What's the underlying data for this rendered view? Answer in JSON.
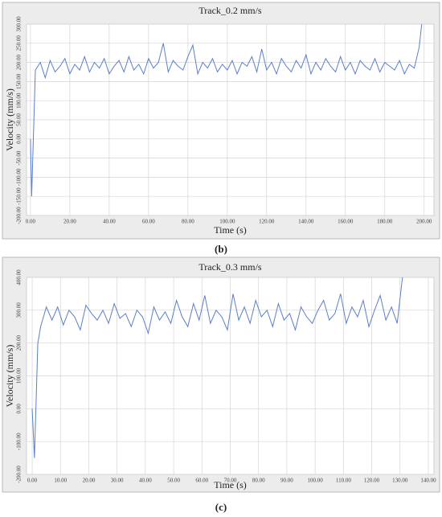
{
  "chart_data": [
    {
      "type": "line",
      "title": "Track_0.2 mm/s",
      "xlabel": "Time (s)",
      "ylabel": "Velocity (mm/s)",
      "caption": "(b)",
      "color": "#5b7fc7",
      "grid": true,
      "x": [
        0,
        0.6,
        2.5,
        5,
        7.5,
        10,
        12.5,
        15,
        17.5,
        20,
        22.5,
        25,
        27.5,
        30,
        32.5,
        35,
        37.5,
        40,
        42.5,
        45,
        47.5,
        50,
        52.5,
        55,
        57.5,
        60,
        62.5,
        65,
        67.5,
        70,
        72.5,
        75,
        77.5,
        80,
        82.5,
        85,
        87.5,
        90,
        92.5,
        95,
        97.5,
        100,
        102.5,
        105,
        107.5,
        110,
        112.5,
        115,
        117.5,
        120,
        122.5,
        125,
        127.5,
        130,
        132.5,
        135,
        137.5,
        140,
        142.5,
        145,
        147.5,
        150,
        152.5,
        155,
        157.5,
        160,
        162.5,
        165,
        167.5,
        170,
        172.5,
        175,
        177.5,
        180,
        182.5,
        185,
        187.5,
        190,
        192.5,
        195,
        197.5,
        199
      ],
      "values": [
        0,
        -150,
        180,
        200,
        160,
        205,
        175,
        190,
        210,
        170,
        195,
        180,
        215,
        175,
        200,
        185,
        210,
        170,
        190,
        205,
        175,
        215,
        180,
        195,
        170,
        210,
        185,
        200,
        250,
        175,
        205,
        190,
        180,
        215,
        245,
        170,
        200,
        185,
        210,
        175,
        195,
        180,
        205,
        170,
        200,
        190,
        215,
        175,
        235,
        180,
        200,
        170,
        210,
        190,
        175,
        205,
        185,
        220,
        170,
        200,
        180,
        210,
        190,
        175,
        215,
        180,
        200,
        170,
        205,
        190,
        180,
        210,
        175,
        200,
        190,
        180,
        205,
        170,
        195,
        185,
        240,
        310
      ],
      "xlim": [
        -2,
        205
      ],
      "ylim": [
        -200,
        300
      ],
      "xticks": [
        {
          "value": 0,
          "label": "0.00"
        },
        {
          "value": 20,
          "label": "20.00"
        },
        {
          "value": 40,
          "label": "40.00"
        },
        {
          "value": 60,
          "label": "60.00"
        },
        {
          "value": 80,
          "label": "80.00"
        },
        {
          "value": 100,
          "label": "100.00"
        },
        {
          "value": 120,
          "label": "120.00"
        },
        {
          "value": 140,
          "label": "140.00"
        },
        {
          "value": 160,
          "label": "160.00"
        },
        {
          "value": 180,
          "label": "180.00"
        },
        {
          "value": 200,
          "label": "200.00"
        }
      ],
      "yticks": [
        {
          "value": -200,
          "label": "-200.00"
        },
        {
          "value": -150,
          "label": "-150.00"
        },
        {
          "value": -100,
          "label": "-100.00"
        },
        {
          "value": -50,
          "label": "-50.00"
        },
        {
          "value": 0,
          "label": "0.00"
        },
        {
          "value": 50,
          "label": "50.00"
        },
        {
          "value": 100,
          "label": "100.00"
        },
        {
          "value": 150,
          "label": "150.00"
        },
        {
          "value": 200,
          "label": "200.00"
        },
        {
          "value": 250,
          "label": "250.00"
        },
        {
          "value": 300,
          "label": "300.00"
        }
      ]
    },
    {
      "type": "line",
      "title": "Track_0.3 mm/s",
      "xlabel": "Time (s)",
      "ylabel": "Velocity (mm/s)",
      "caption": "(c)",
      "color": "#5b7fc7",
      "grid": true,
      "x": [
        0,
        0.8,
        2,
        3,
        5,
        7,
        9,
        11,
        13,
        15,
        17,
        19,
        21,
        23,
        25,
        27,
        29,
        31,
        33,
        35,
        37,
        39,
        41,
        43,
        45,
        47,
        49,
        51,
        53,
        55,
        57,
        59,
        61,
        63,
        65,
        67,
        69,
        71,
        73,
        75,
        77,
        79,
        81,
        83,
        85,
        87,
        89,
        91,
        93,
        95,
        97,
        99,
        101,
        103,
        105,
        107,
        109,
        111,
        113,
        115,
        117,
        119,
        121,
        123,
        125,
        127,
        129,
        131
      ],
      "values": [
        0,
        -150,
        200,
        250,
        310,
        270,
        310,
        255,
        300,
        280,
        240,
        315,
        290,
        270,
        300,
        260,
        320,
        275,
        290,
        250,
        300,
        280,
        230,
        310,
        270,
        295,
        260,
        330,
        280,
        250,
        320,
        270,
        345,
        260,
        300,
        280,
        240,
        350,
        270,
        310,
        260,
        330,
        280,
        300,
        250,
        320,
        270,
        290,
        240,
        310,
        280,
        260,
        300,
        330,
        270,
        290,
        350,
        260,
        310,
        280,
        330,
        250,
        300,
        345,
        270,
        310,
        260,
        410
      ],
      "xlim": [
        -2,
        142
      ],
      "ylim": [
        -200,
        400
      ],
      "xticks": [
        {
          "value": 0,
          "label": "0.00"
        },
        {
          "value": 10,
          "label": "10.00"
        },
        {
          "value": 20,
          "label": "20.00"
        },
        {
          "value": 30,
          "label": "30.00"
        },
        {
          "value": 40,
          "label": "40.00"
        },
        {
          "value": 50,
          "label": "50.00"
        },
        {
          "value": 60,
          "label": "60.00"
        },
        {
          "value": 70,
          "label": "70.00"
        },
        {
          "value": 80,
          "label": "80.00"
        },
        {
          "value": 90,
          "label": "90.00"
        },
        {
          "value": 100,
          "label": "100.00"
        },
        {
          "value": 110,
          "label": "110.00"
        },
        {
          "value": 120,
          "label": "120.00"
        },
        {
          "value": 130,
          "label": "130.00"
        },
        {
          "value": 140,
          "label": "140.00"
        }
      ],
      "yticks": [
        {
          "value": -200,
          "label": "-200.00"
        },
        {
          "value": -100,
          "label": "-100.00"
        },
        {
          "value": 0,
          "label": "0.00"
        },
        {
          "value": 100,
          "label": "100.00"
        },
        {
          "value": 200,
          "label": "200.00"
        },
        {
          "value": 300,
          "label": "300.00"
        },
        {
          "value": 400,
          "label": "400.00"
        }
      ]
    }
  ]
}
